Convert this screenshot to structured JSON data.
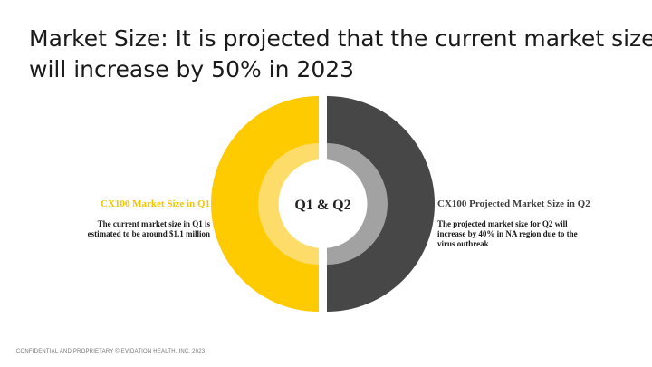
{
  "title": {
    "line1": "Market Size: It is projected that the current market size",
    "line2": "will increase by 50% in 2023"
  },
  "diagram": {
    "center_label": "Q1 & Q2",
    "colors": {
      "left_outer": "#fecb00",
      "left_inner": "#fedc6a",
      "right_outer": "#474747",
      "right_inner": "#a2a2a2",
      "center": "#ffffff"
    }
  },
  "left": {
    "heading": "CX100 Market Size in Q1",
    "body_line1": "The current market size in Q1 is",
    "body_line2": "estimated to be around $1.1 million"
  },
  "right": {
    "heading": "CX100 Projected Market Size in Q2",
    "body_line1": "The projected market size for Q2 will",
    "body_line2": "increase by 40% in NA region due to the",
    "body_line3": "virus outbreak"
  },
  "footer": {
    "text": "CONFIDENTIAL AND PROPRIETARY © EVIDATION HEALTH, INC. 2023"
  }
}
